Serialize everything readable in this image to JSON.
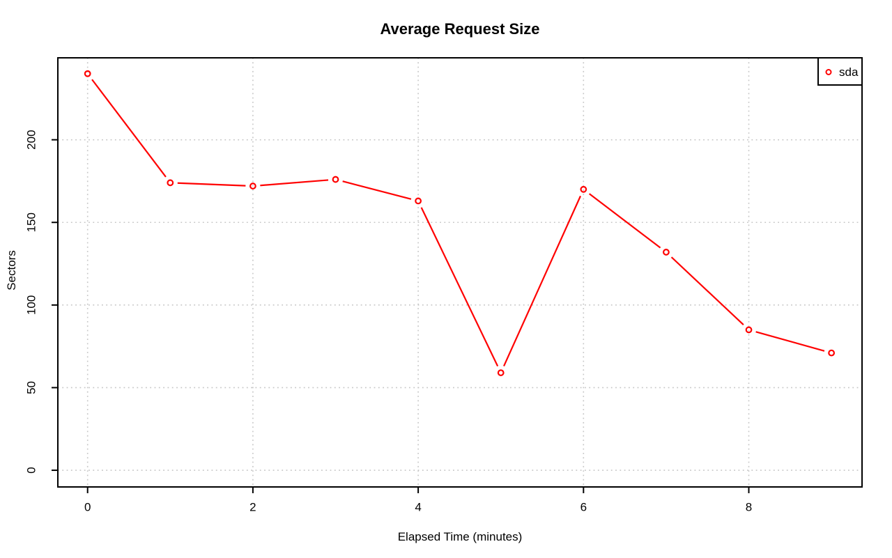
{
  "chart_data": {
    "type": "line",
    "title": "Average Request Size",
    "xlabel": "Elapsed Time (minutes)",
    "ylabel": "Sectors",
    "x": [
      0,
      1,
      2,
      3,
      4,
      5,
      6,
      7,
      8,
      9
    ],
    "series": [
      {
        "name": "sda",
        "color": "#ff0000",
        "marker": "open-circle",
        "line_style": "solid-with-point-gaps",
        "values": [
          240,
          174,
          172,
          176,
          163,
          59,
          170,
          132,
          85,
          71
        ]
      }
    ],
    "x_ticks": [
      0,
      2,
      4,
      6,
      8
    ],
    "y_ticks": [
      0,
      50,
      100,
      150,
      200
    ],
    "x_range": [
      -0.36,
      9.37
    ],
    "y_range": [
      -10.1,
      249.6
    ],
    "grid": "dotted",
    "grid_color": "#c6c6c6",
    "axis_color": "#000000",
    "background_color": "#ffffff",
    "legend_position": "top-right-inside",
    "legend": [
      {
        "label": "sda",
        "symbol": "open-circle",
        "color": "#ff0000"
      }
    ]
  }
}
